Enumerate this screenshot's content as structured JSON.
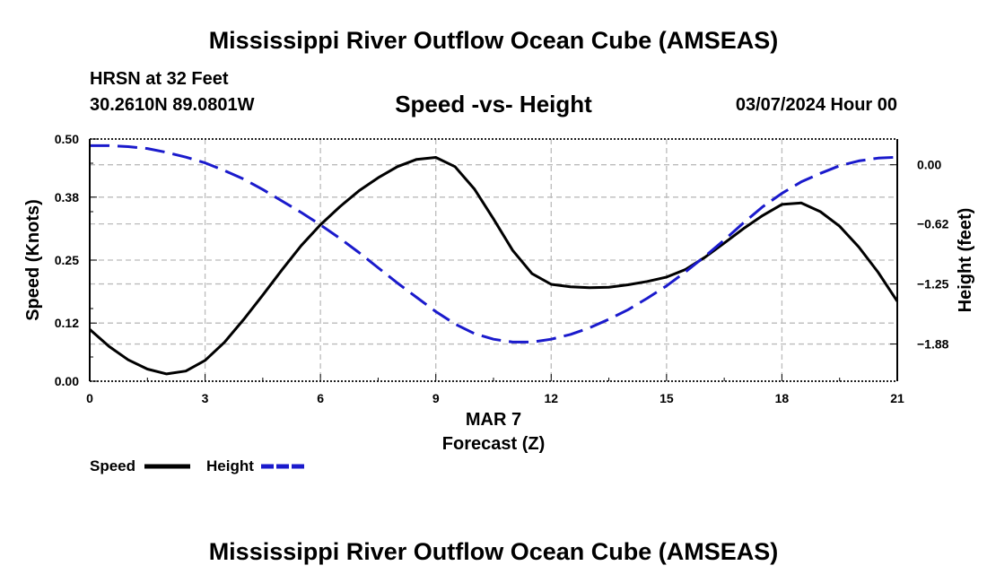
{
  "header": {
    "title": "Mississippi River Outflow Ocean Cube (AMSEAS)",
    "station": "HRSN at 32 Feet",
    "coordinates": "30.2610N  89.0801W",
    "subtitle": "Speed -vs- Height",
    "datetime": "03/07/2024 Hour 00"
  },
  "footer": {
    "title": "Mississippi River Outflow Ocean Cube (AMSEAS)"
  },
  "chart_data": {
    "type": "line",
    "title": "Speed -vs- Height",
    "xlabel": "Forecast (Z)",
    "xlabel_date": "MAR 7",
    "ylabel_left": "Speed (Knots)",
    "ylabel_right": "Height (feet)",
    "xlim": [
      0,
      21
    ],
    "ylim_left": [
      0,
      0.5
    ],
    "ylim_right": [
      -2.27,
      0.27
    ],
    "grid": true,
    "x_ticks": [
      "0",
      "3",
      "6",
      "9",
      "12",
      "15",
      "18",
      "21"
    ],
    "y_left_ticks": [
      "0.00",
      "0.12",
      "0.25",
      "0.38",
      "0.50"
    ],
    "y_right_ticks": [
      "0.00",
      "-0.62",
      "-1.25",
      "-1.88"
    ],
    "colors": {
      "speed": "#000000",
      "height": "#1a1acc",
      "grid": "#bbbbbb"
    },
    "legend_position": "bottom-left",
    "series": [
      {
        "name": "Speed",
        "axis": "left",
        "style": "solid",
        "x": [
          0,
          0.5,
          1,
          1.5,
          2,
          2.5,
          3,
          3.5,
          4,
          4.5,
          5,
          5.5,
          6,
          6.5,
          7,
          7.5,
          8,
          8.5,
          9,
          9.5,
          10,
          10.5,
          11,
          11.5,
          12,
          12.5,
          13,
          13.5,
          14,
          14.5,
          15,
          15.5,
          16,
          16.5,
          17,
          17.5,
          18,
          18.5,
          19,
          19.5,
          20,
          20.5,
          21
        ],
        "values": [
          0.107,
          0.072,
          0.044,
          0.025,
          0.015,
          0.021,
          0.043,
          0.08,
          0.127,
          0.178,
          0.23,
          0.28,
          0.323,
          0.36,
          0.393,
          0.42,
          0.443,
          0.458,
          0.462,
          0.443,
          0.397,
          0.335,
          0.27,
          0.222,
          0.2,
          0.195,
          0.193,
          0.194,
          0.199,
          0.206,
          0.215,
          0.231,
          0.256,
          0.285,
          0.315,
          0.342,
          0.365,
          0.368,
          0.35,
          0.32,
          0.277,
          0.225,
          0.165
        ]
      },
      {
        "name": "Height",
        "axis": "right",
        "style": "dashed",
        "x": [
          0,
          0.5,
          1,
          1.5,
          2,
          2.5,
          3,
          3.5,
          4,
          4.5,
          5,
          5.5,
          6,
          6.5,
          7,
          7.5,
          8,
          8.5,
          9,
          9.5,
          10,
          10.5,
          11,
          11.5,
          12,
          12.5,
          13,
          13.5,
          14,
          14.5,
          15,
          15.5,
          16,
          16.5,
          17,
          17.5,
          18,
          18.5,
          19,
          19.5,
          20,
          20.5,
          21
        ],
        "values": [
          0.2,
          0.2,
          0.19,
          0.17,
          0.13,
          0.08,
          0.02,
          -0.06,
          -0.15,
          -0.26,
          -0.38,
          -0.5,
          -0.63,
          -0.77,
          -0.92,
          -1.08,
          -1.24,
          -1.39,
          -1.54,
          -1.67,
          -1.77,
          -1.83,
          -1.86,
          -1.86,
          -1.83,
          -1.78,
          -1.71,
          -1.62,
          -1.52,
          -1.4,
          -1.27,
          -1.12,
          -0.96,
          -0.79,
          -0.61,
          -0.44,
          -0.3,
          -0.18,
          -0.09,
          -0.01,
          0.04,
          0.07,
          0.08
        ]
      }
    ]
  }
}
